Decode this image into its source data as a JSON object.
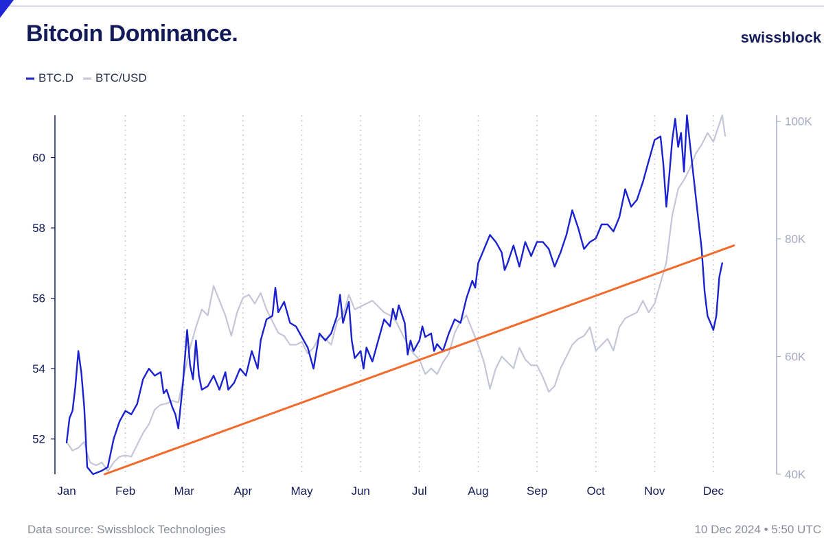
{
  "header": {
    "title": "Bitcoin Dominance.",
    "logo_text": "swissblock"
  },
  "footer": {
    "source": "Data source: Swissblock Technologies",
    "timestamp": "10 Dec 2024 • 5:50 UTC"
  },
  "colors": {
    "btc_d": "#1a22d0",
    "btc_usd": "#c4c6d8",
    "trendline": "#f26a2a",
    "text_dark": "#121b57",
    "grid": "#c9c9d2"
  },
  "chart_data": {
    "type": "line",
    "title": "Bitcoin Dominance.",
    "legend_position": "top-left",
    "grid": "vertical dotted lines at month ticks",
    "x_range": [
      0,
      11.9
    ],
    "x_ticks": [
      "Jan",
      "Feb",
      "Mar",
      "Apr",
      "May",
      "Jun",
      "Jul",
      "Aug",
      "Sep",
      "Oct",
      "Nov",
      "Dec"
    ],
    "y_left": {
      "range": [
        51,
        61.2
      ],
      "ticks": [
        "52",
        "54",
        "56",
        "58",
        "60"
      ],
      "tick_values": [
        52,
        54,
        56,
        58,
        60
      ]
    },
    "y_right": {
      "range": [
        40000,
        101000
      ],
      "ticks": [
        "40K",
        "60K",
        "80K",
        "100K"
      ],
      "tick_values": [
        40000,
        60000,
        80000,
        100000
      ]
    },
    "series": [
      {
        "name": "BTC.D",
        "axis": "left",
        "points": [
          [
            0,
            51.9
          ],
          [
            0.05,
            52.6
          ],
          [
            0.1,
            52.8
          ],
          [
            0.15,
            53.5
          ],
          [
            0.2,
            54.5
          ],
          [
            0.25,
            53.9
          ],
          [
            0.3,
            52.9
          ],
          [
            0.35,
            51.2
          ],
          [
            0.45,
            51.0
          ],
          [
            0.6,
            51.1
          ],
          [
            0.7,
            51.2
          ],
          [
            0.8,
            52.0
          ],
          [
            0.9,
            52.5
          ],
          [
            1.0,
            52.8
          ],
          [
            1.1,
            52.7
          ],
          [
            1.2,
            53.0
          ],
          [
            1.3,
            53.7
          ],
          [
            1.4,
            54.0
          ],
          [
            1.5,
            53.8
          ],
          [
            1.6,
            53.9
          ],
          [
            1.65,
            53.3
          ],
          [
            1.7,
            53.4
          ],
          [
            1.8,
            52.9
          ],
          [
            1.85,
            52.7
          ],
          [
            1.9,
            52.3
          ],
          [
            1.98,
            53.6
          ],
          [
            2.05,
            55.1
          ],
          [
            2.1,
            54.1
          ],
          [
            2.15,
            53.7
          ],
          [
            2.2,
            54.8
          ],
          [
            2.25,
            53.8
          ],
          [
            2.3,
            53.4
          ],
          [
            2.4,
            53.5
          ],
          [
            2.5,
            53.8
          ],
          [
            2.6,
            53.4
          ],
          [
            2.7,
            53.9
          ],
          [
            2.75,
            53.4
          ],
          [
            2.85,
            53.6
          ],
          [
            2.95,
            54.0
          ],
          [
            3.05,
            53.8
          ],
          [
            3.15,
            54.5
          ],
          [
            3.25,
            54.0
          ],
          [
            3.3,
            54.8
          ],
          [
            3.4,
            55.4
          ],
          [
            3.5,
            55.5
          ],
          [
            3.55,
            56.3
          ],
          [
            3.6,
            55.6
          ],
          [
            3.7,
            55.9
          ],
          [
            3.8,
            55.3
          ],
          [
            3.9,
            55.2
          ],
          [
            4.0,
            54.9
          ],
          [
            4.1,
            54.6
          ],
          [
            4.2,
            54.0
          ],
          [
            4.3,
            55.0
          ],
          [
            4.4,
            54.8
          ],
          [
            4.5,
            55.0
          ],
          [
            4.6,
            55.5
          ],
          [
            4.65,
            56.1
          ],
          [
            4.7,
            55.3
          ],
          [
            4.8,
            55.9
          ],
          [
            4.85,
            54.8
          ],
          [
            4.9,
            54.3
          ],
          [
            5.0,
            54.5
          ],
          [
            5.05,
            54.0
          ],
          [
            5.1,
            54.6
          ],
          [
            5.2,
            54.2
          ],
          [
            5.3,
            54.8
          ],
          [
            5.4,
            55.4
          ],
          [
            5.5,
            55.2
          ],
          [
            5.55,
            55.7
          ],
          [
            5.6,
            55.4
          ],
          [
            5.65,
            55.8
          ],
          [
            5.75,
            55.3
          ],
          [
            5.8,
            54.4
          ],
          [
            5.85,
            54.8
          ],
          [
            5.9,
            54.5
          ],
          [
            6.0,
            54.8
          ],
          [
            6.05,
            55.2
          ],
          [
            6.1,
            54.9
          ],
          [
            6.2,
            55.0
          ],
          [
            6.25,
            54.5
          ],
          [
            6.3,
            54.7
          ],
          [
            6.4,
            54.5
          ],
          [
            6.5,
            55.0
          ],
          [
            6.6,
            55.4
          ],
          [
            6.7,
            55.3
          ],
          [
            6.8,
            56.0
          ],
          [
            6.9,
            56.5
          ],
          [
            6.95,
            56.3
          ],
          [
            7.0,
            57.0
          ],
          [
            7.1,
            57.4
          ],
          [
            7.2,
            57.8
          ],
          [
            7.3,
            57.6
          ],
          [
            7.4,
            57.3
          ],
          [
            7.45,
            56.8
          ],
          [
            7.5,
            57.0
          ],
          [
            7.6,
            57.5
          ],
          [
            7.7,
            56.9
          ],
          [
            7.8,
            57.6
          ],
          [
            7.9,
            57.2
          ],
          [
            8.0,
            57.6
          ],
          [
            8.1,
            57.6
          ],
          [
            8.2,
            57.4
          ],
          [
            8.3,
            56.9
          ],
          [
            8.4,
            57.3
          ],
          [
            8.5,
            57.8
          ],
          [
            8.6,
            58.5
          ],
          [
            8.7,
            58.0
          ],
          [
            8.8,
            57.4
          ],
          [
            8.9,
            57.6
          ],
          [
            9.0,
            57.7
          ],
          [
            9.1,
            58.1
          ],
          [
            9.2,
            58.1
          ],
          [
            9.3,
            57.9
          ],
          [
            9.4,
            58.3
          ],
          [
            9.5,
            59.1
          ],
          [
            9.6,
            58.6
          ],
          [
            9.7,
            58.8
          ],
          [
            9.8,
            59.3
          ],
          [
            9.9,
            59.9
          ],
          [
            10.0,
            60.5
          ],
          [
            10.1,
            60.6
          ],
          [
            10.15,
            59.8
          ],
          [
            10.2,
            58.6
          ],
          [
            10.25,
            59.5
          ],
          [
            10.3,
            60.5
          ],
          [
            10.35,
            61.1
          ],
          [
            10.4,
            60.3
          ],
          [
            10.45,
            60.7
          ],
          [
            10.5,
            59.6
          ],
          [
            10.55,
            61.2
          ],
          [
            10.6,
            60.4
          ],
          [
            10.7,
            58.9
          ],
          [
            10.8,
            57.4
          ],
          [
            10.85,
            56.2
          ],
          [
            10.9,
            55.5
          ],
          [
            10.95,
            55.3
          ],
          [
            11.0,
            55.1
          ],
          [
            11.05,
            55.5
          ],
          [
            11.1,
            56.6
          ],
          [
            11.15,
            57.0
          ]
        ]
      },
      {
        "name": "BTC/USD",
        "axis": "right",
        "points": [
          [
            0,
            45500
          ],
          [
            0.1,
            44000
          ],
          [
            0.2,
            44500
          ],
          [
            0.3,
            45500
          ],
          [
            0.35,
            43500
          ],
          [
            0.4,
            42000
          ],
          [
            0.5,
            41500
          ],
          [
            0.6,
            42000
          ],
          [
            0.7,
            40500
          ],
          [
            0.8,
            42000
          ],
          [
            0.9,
            43000
          ],
          [
            1.0,
            43200
          ],
          [
            1.1,
            43000
          ],
          [
            1.2,
            45000
          ],
          [
            1.3,
            47000
          ],
          [
            1.4,
            48500
          ],
          [
            1.5,
            51000
          ],
          [
            1.6,
            51800
          ],
          [
            1.7,
            52000
          ],
          [
            1.8,
            52500
          ],
          [
            1.9,
            52200
          ],
          [
            2.0,
            57000
          ],
          [
            2.1,
            61500
          ],
          [
            2.2,
            65000
          ],
          [
            2.3,
            68000
          ],
          [
            2.4,
            67000
          ],
          [
            2.5,
            72000
          ],
          [
            2.6,
            69500
          ],
          [
            2.7,
            67000
          ],
          [
            2.8,
            63500
          ],
          [
            2.9,
            67500
          ],
          [
            3.0,
            70000
          ],
          [
            3.1,
            70500
          ],
          [
            3.2,
            69000
          ],
          [
            3.3,
            70800
          ],
          [
            3.4,
            68000
          ],
          [
            3.5,
            66000
          ],
          [
            3.6,
            64000
          ],
          [
            3.7,
            63500
          ],
          [
            3.8,
            62000
          ],
          [
            3.9,
            62000
          ],
          [
            4.0,
            62500
          ],
          [
            4.1,
            60500
          ],
          [
            4.2,
            61500
          ],
          [
            4.3,
            63500
          ],
          [
            4.4,
            63000
          ],
          [
            4.5,
            62000
          ],
          [
            4.6,
            66000
          ],
          [
            4.7,
            67000
          ],
          [
            4.8,
            70500
          ],
          [
            4.9,
            68000
          ],
          [
            5.0,
            68500
          ],
          [
            5.1,
            69000
          ],
          [
            5.2,
            69500
          ],
          [
            5.3,
            68500
          ],
          [
            5.4,
            67500
          ],
          [
            5.5,
            67000
          ],
          [
            5.6,
            66000
          ],
          [
            5.7,
            64000
          ],
          [
            5.8,
            62000
          ],
          [
            5.9,
            60500
          ],
          [
            6.0,
            59500
          ],
          [
            6.1,
            57000
          ],
          [
            6.2,
            58000
          ],
          [
            6.3,
            57000
          ],
          [
            6.4,
            59000
          ],
          [
            6.5,
            60500
          ],
          [
            6.6,
            64000
          ],
          [
            6.7,
            66000
          ],
          [
            6.8,
            67000
          ],
          [
            6.9,
            64500
          ],
          [
            7.0,
            62000
          ],
          [
            7.1,
            59000
          ],
          [
            7.2,
            54500
          ],
          [
            7.3,
            58000
          ],
          [
            7.4,
            60000
          ],
          [
            7.5,
            59000
          ],
          [
            7.6,
            58000
          ],
          [
            7.7,
            61500
          ],
          [
            7.8,
            59500
          ],
          [
            7.9,
            58500
          ],
          [
            8.0,
            58500
          ],
          [
            8.1,
            56500
          ],
          [
            8.2,
            54000
          ],
          [
            8.3,
            55000
          ],
          [
            8.4,
            58000
          ],
          [
            8.5,
            60000
          ],
          [
            8.6,
            62000
          ],
          [
            8.7,
            63000
          ],
          [
            8.8,
            63500
          ],
          [
            8.9,
            65000
          ],
          [
            9.0,
            61000
          ],
          [
            9.1,
            62000
          ],
          [
            9.2,
            63000
          ],
          [
            9.3,
            61000
          ],
          [
            9.4,
            65000
          ],
          [
            9.5,
            66500
          ],
          [
            9.6,
            67000
          ],
          [
            9.7,
            67500
          ],
          [
            9.8,
            69500
          ],
          [
            9.9,
            67500
          ],
          [
            10.0,
            69000
          ],
          [
            10.1,
            72500
          ],
          [
            10.2,
            76000
          ],
          [
            10.3,
            84000
          ],
          [
            10.4,
            88500
          ],
          [
            10.5,
            90000
          ],
          [
            10.6,
            92000
          ],
          [
            10.7,
            94500
          ],
          [
            10.8,
            96000
          ],
          [
            10.9,
            98000
          ],
          [
            11.0,
            96500
          ],
          [
            11.1,
            99500
          ],
          [
            11.15,
            101000
          ],
          [
            11.2,
            97500
          ]
        ]
      }
    ],
    "trendline": {
      "axis": "left",
      "points": [
        [
          0.65,
          51.0
        ],
        [
          11.35,
          57.5
        ]
      ]
    }
  }
}
